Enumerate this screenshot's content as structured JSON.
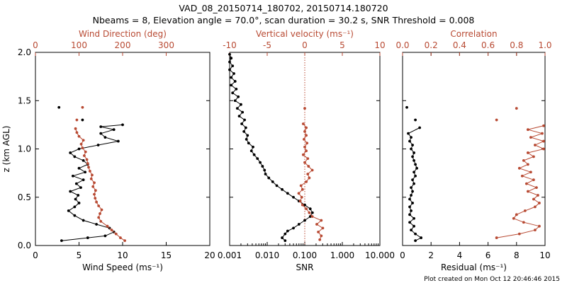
{
  "title_line1": "VAD_08_20150714_180702, 20150714.180720",
  "title_line2": "Nbeams = 8, Elevation angle = 70.0°, scan duration = 30.2 s, SNR Threshold = 0.008",
  "footer": "Plot created on Mon Oct 12 20:46:46 2015",
  "colors": {
    "black": "#000000",
    "red": "#b84a33"
  },
  "chart_data": [
    {
      "type": "line",
      "panel": "wind",
      "ylabel": "z (km AGL)",
      "ylim": [
        0,
        2.0
      ],
      "yticks": [
        "0.0",
        "0.5",
        "1.0",
        "1.5",
        "2.0"
      ],
      "bottom_axis": {
        "label": "Wind Speed (ms⁻¹)",
        "range": [
          0,
          20
        ],
        "ticks": [
          "0",
          "5",
          "10",
          "15",
          "20"
        ]
      },
      "top_axis": {
        "label": "Wind Direction (deg)",
        "range": [
          0,
          400
        ],
        "ticks": [
          "0",
          "100",
          "200",
          "300"
        ]
      },
      "series": [
        {
          "name": "Wind Speed",
          "axis": "bottom",
          "color": "#000000",
          "points": [
            [
              3.0,
              0.05
            ],
            [
              6.0,
              0.08
            ],
            [
              8.0,
              0.1
            ],
            [
              9.0,
              0.14
            ],
            [
              8.5,
              0.18
            ],
            [
              7.0,
              0.22
            ],
            [
              5.5,
              0.26
            ],
            [
              4.5,
              0.31
            ],
            [
              3.8,
              0.36
            ],
            [
              4.5,
              0.4
            ],
            [
              5.0,
              0.44
            ],
            [
              4.6,
              0.48
            ],
            [
              4.9,
              0.52
            ],
            [
              4.0,
              0.56
            ],
            [
              5.2,
              0.6
            ],
            [
              4.7,
              0.64
            ],
            [
              5.5,
              0.68
            ],
            [
              4.3,
              0.72
            ],
            [
              5.7,
              0.76
            ],
            [
              5.0,
              0.8
            ],
            [
              6.0,
              0.84
            ],
            [
              5.5,
              0.88
            ],
            [
              4.5,
              0.92
            ],
            [
              4.0,
              0.96
            ],
            [
              5.0,
              1.0
            ],
            [
              7.2,
              1.04
            ],
            [
              9.5,
              1.08
            ],
            [
              8.0,
              1.12
            ],
            [
              7.5,
              1.16
            ],
            [
              9.0,
              1.2
            ],
            [
              7.5,
              1.23
            ],
            [
              10.0,
              1.25
            ]
          ],
          "isolated": [
            [
              2.7,
              1.43
            ],
            [
              5.4,
              1.3
            ]
          ]
        },
        {
          "name": "Wind Direction",
          "axis": "top",
          "color": "#b84a33",
          "points": [
            [
              205,
              0.05
            ],
            [
              195,
              0.08
            ],
            [
              185,
              0.12
            ],
            [
              175,
              0.16
            ],
            [
              165,
              0.2
            ],
            [
              150,
              0.25
            ],
            [
              145,
              0.29
            ],
            [
              148,
              0.33
            ],
            [
              152,
              0.37
            ],
            [
              145,
              0.41
            ],
            [
              140,
              0.45
            ],
            [
              137,
              0.49
            ],
            [
              135,
              0.53
            ],
            [
              138,
              0.57
            ],
            [
              132,
              0.61
            ],
            [
              135,
              0.65
            ],
            [
              128,
              0.69
            ],
            [
              130,
              0.73
            ],
            [
              125,
              0.77
            ],
            [
              122,
              0.81
            ],
            [
              120,
              0.85
            ],
            [
              118,
              0.89
            ],
            [
              112,
              0.93
            ],
            [
              115,
              0.97
            ],
            [
              108,
              1.01
            ],
            [
              105,
              1.05
            ],
            [
              110,
              1.09
            ],
            [
              100,
              1.13
            ],
            [
              95,
              1.17
            ],
            [
              92,
              1.21
            ]
          ],
          "isolated": [
            [
              108,
              1.43
            ],
            [
              95,
              1.3
            ]
          ]
        }
      ]
    },
    {
      "type": "line",
      "panel": "snr",
      "ylim": [
        0,
        2.0
      ],
      "bottom_axis": {
        "label": "SNR",
        "scale": "log",
        "range": [
          0.001,
          10.0
        ],
        "ticks": [
          "0.001",
          "0.010",
          "0.100",
          "1.000",
          "10.000"
        ]
      },
      "top_axis": {
        "label": "Vertical velocity (ms⁻¹)",
        "range": [
          -10,
          10
        ],
        "ticks": [
          "-10",
          "-5",
          "0",
          "5",
          "10"
        ]
      },
      "reference_line": {
        "axis": "top",
        "value": 0
      },
      "series": [
        {
          "name": "SNR",
          "axis": "bottom",
          "color": "#000000",
          "points": [
            [
              0.03,
              0.05
            ],
            [
              0.025,
              0.08
            ],
            [
              0.03,
              0.12
            ],
            [
              0.035,
              0.15
            ],
            [
              0.05,
              0.18
            ],
            [
              0.07,
              0.22
            ],
            [
              0.1,
              0.26
            ],
            [
              0.14,
              0.3
            ],
            [
              0.16,
              0.34
            ],
            [
              0.14,
              0.38
            ],
            [
              0.1,
              0.42
            ],
            [
              0.07,
              0.46
            ],
            [
              0.05,
              0.5
            ],
            [
              0.035,
              0.54
            ],
            [
              0.025,
              0.58
            ],
            [
              0.018,
              0.62
            ],
            [
              0.014,
              0.66
            ],
            [
              0.011,
              0.7
            ],
            [
              0.009,
              0.74
            ],
            [
              0.0085,
              0.78
            ],
            [
              0.0075,
              0.82
            ],
            [
              0.0065,
              0.86
            ],
            [
              0.0055,
              0.9
            ],
            [
              0.0045,
              0.94
            ],
            [
              0.0038,
              0.98
            ],
            [
              0.0042,
              1.02
            ],
            [
              0.0032,
              1.06
            ],
            [
              0.0028,
              1.1
            ],
            [
              0.003,
              1.14
            ],
            [
              0.0024,
              1.18
            ],
            [
              0.0027,
              1.22
            ],
            [
              0.0021,
              1.26
            ],
            [
              0.0025,
              1.3
            ],
            [
              0.0018,
              1.34
            ],
            [
              0.0022,
              1.38
            ],
            [
              0.0016,
              1.42
            ],
            [
              0.002,
              1.46
            ],
            [
              0.0014,
              1.5
            ],
            [
              0.0017,
              1.54
            ],
            [
              0.0012,
              1.58
            ],
            [
              0.0015,
              1.62
            ],
            [
              0.0011,
              1.66
            ],
            [
              0.0014,
              1.7
            ],
            [
              0.0011,
              1.74
            ],
            [
              0.0013,
              1.78
            ],
            [
              0.001,
              1.82
            ],
            [
              0.0012,
              1.86
            ],
            [
              0.001,
              1.9
            ],
            [
              0.0011,
              1.94
            ],
            [
              0.001,
              1.98
            ]
          ]
        },
        {
          "name": "Vertical velocity",
          "axis": "top",
          "color": "#b84a33",
          "points": [
            [
              2.0,
              0.06
            ],
            [
              2.2,
              0.1
            ],
            [
              1.8,
              0.14
            ],
            [
              2.4,
              0.18
            ],
            [
              1.6,
              0.22
            ],
            [
              2.2,
              0.26
            ],
            [
              1.0,
              0.3
            ],
            [
              0.6,
              0.34
            ],
            [
              0.2,
              0.38
            ],
            [
              -0.3,
              0.42
            ],
            [
              -0.6,
              0.46
            ],
            [
              -0.4,
              0.5
            ],
            [
              -0.8,
              0.54
            ],
            [
              -0.3,
              0.58
            ],
            [
              -0.5,
              0.62
            ],
            [
              0.2,
              0.66
            ],
            [
              0.6,
              0.7
            ],
            [
              0.4,
              0.74
            ],
            [
              1.0,
              0.78
            ],
            [
              0.5,
              0.82
            ],
            [
              0.0,
              0.86
            ],
            [
              0.4,
              0.9
            ],
            [
              -0.2,
              0.94
            ],
            [
              0.2,
              0.98
            ],
            [
              0.0,
              1.02
            ],
            [
              0.3,
              1.06
            ],
            [
              -0.1,
              1.1
            ],
            [
              0.2,
              1.14
            ],
            [
              0.0,
              1.18
            ],
            [
              0.2,
              1.22
            ],
            [
              -0.2,
              1.26
            ]
          ],
          "isolated": [
            [
              0.0,
              1.42
            ]
          ]
        }
      ]
    },
    {
      "type": "line",
      "panel": "residual",
      "ylim": [
        0,
        2.0
      ],
      "bottom_axis": {
        "label": "Residual (ms⁻¹)",
        "range": [
          0,
          10
        ],
        "ticks": [
          "0",
          "2",
          "4",
          "6",
          "8",
          "10"
        ]
      },
      "top_axis": {
        "label": "Correlation",
        "range": [
          0.0,
          1.0
        ],
        "ticks": [
          "0.0",
          "0.2",
          "0.4",
          "0.6",
          "0.8",
          "1.0"
        ]
      },
      "series": [
        {
          "name": "Residual",
          "axis": "bottom",
          "color": "#000000",
          "points": [
            [
              0.9,
              0.05
            ],
            [
              1.3,
              0.08
            ],
            [
              0.9,
              0.12
            ],
            [
              0.6,
              0.16
            ],
            [
              0.8,
              0.2
            ],
            [
              0.5,
              0.24
            ],
            [
              0.8,
              0.28
            ],
            [
              0.5,
              0.32
            ],
            [
              0.6,
              0.36
            ],
            [
              0.5,
              0.4
            ],
            [
              0.7,
              0.44
            ],
            [
              0.5,
              0.48
            ],
            [
              0.6,
              0.52
            ],
            [
              0.7,
              0.56
            ],
            [
              0.6,
              0.6
            ],
            [
              0.8,
              0.64
            ],
            [
              0.7,
              0.68
            ],
            [
              0.9,
              0.72
            ],
            [
              0.8,
              0.76
            ],
            [
              1.0,
              0.8
            ],
            [
              0.9,
              0.84
            ],
            [
              0.8,
              0.88
            ],
            [
              0.7,
              0.92
            ],
            [
              0.8,
              0.96
            ],
            [
              0.6,
              1.0
            ],
            [
              0.7,
              1.04
            ],
            [
              0.5,
              1.08
            ],
            [
              0.6,
              1.12
            ],
            [
              0.4,
              1.16
            ],
            [
              1.2,
              1.22
            ]
          ],
          "isolated": [
            [
              0.3,
              1.43
            ],
            [
              0.9,
              1.3
            ]
          ]
        },
        {
          "name": "Correlation",
          "axis": "top",
          "color": "#b84a33",
          "points": [
            [
              0.66,
              0.08
            ],
            [
              0.82,
              0.12
            ],
            [
              0.93,
              0.16
            ],
            [
              0.96,
              0.2
            ],
            [
              0.85,
              0.24
            ],
            [
              0.78,
              0.28
            ],
            [
              0.8,
              0.32
            ],
            [
              0.86,
              0.36
            ],
            [
              0.93,
              0.4
            ],
            [
              0.96,
              0.44
            ],
            [
              0.92,
              0.48
            ],
            [
              0.95,
              0.52
            ],
            [
              0.88,
              0.56
            ],
            [
              0.94,
              0.6
            ],
            [
              0.87,
              0.64
            ],
            [
              0.92,
              0.68
            ],
            [
              0.84,
              0.72
            ],
            [
              0.9,
              0.76
            ],
            [
              0.82,
              0.8
            ],
            [
              0.88,
              0.84
            ],
            [
              0.85,
              0.88
            ],
            [
              0.92,
              0.92
            ],
            [
              0.88,
              0.96
            ],
            [
              0.99,
              1.0
            ],
            [
              0.93,
              1.04
            ],
            [
              0.99,
              1.08
            ],
            [
              0.9,
              1.12
            ],
            [
              0.98,
              1.16
            ],
            [
              0.88,
              1.2
            ],
            [
              0.99,
              1.24
            ]
          ],
          "isolated": [
            [
              0.66,
              1.3
            ],
            [
              0.8,
              1.42
            ]
          ]
        }
      ]
    }
  ]
}
